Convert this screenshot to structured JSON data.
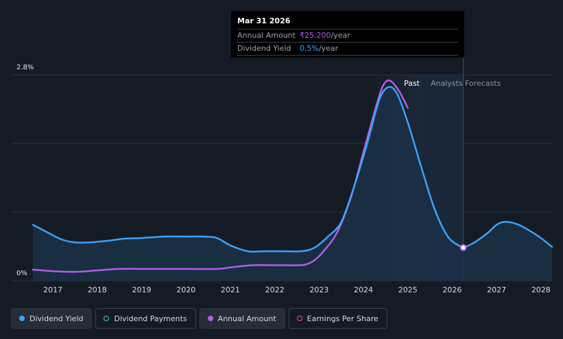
{
  "chart_data": {
    "type": "area",
    "y_axis": {
      "ticks": [
        "2.8%",
        "0%"
      ],
      "max_percent": 2.8,
      "min_percent": 0
    },
    "x_axis": {
      "ticks": [
        "2017",
        "2018",
        "2019",
        "2020",
        "2021",
        "2022",
        "2023",
        "2024",
        "2025",
        "2026",
        "2027",
        "2028"
      ],
      "range": [
        2016.55,
        2028.25
      ]
    },
    "series": [
      {
        "name": "Dividend Yield",
        "color": "#3aa3ff",
        "x": [
          2016.55,
          2016.9,
          2017.2,
          2017.5,
          2017.8,
          2018.2,
          2018.6,
          2019.0,
          2019.5,
          2020.0,
          2020.4,
          2020.7,
          2021.0,
          2021.4,
          2021.8,
          2022.2,
          2022.6,
          2022.9,
          2023.2,
          2023.5,
          2023.8,
          2024.1,
          2024.35,
          2024.55,
          2024.75,
          2025.0,
          2025.3,
          2025.6,
          2025.9,
          2026.2,
          2026.25,
          2026.5,
          2026.8,
          2027.0,
          2027.2,
          2027.5,
          2027.8,
          2028.0,
          2028.25
        ],
        "values": [
          0.76,
          0.65,
          0.56,
          0.52,
          0.52,
          0.54,
          0.57,
          0.58,
          0.6,
          0.6,
          0.6,
          0.58,
          0.48,
          0.4,
          0.4,
          0.4,
          0.4,
          0.45,
          0.6,
          0.8,
          1.3,
          1.9,
          2.45,
          2.63,
          2.55,
          2.15,
          1.55,
          0.98,
          0.6,
          0.46,
          0.45,
          0.52,
          0.65,
          0.76,
          0.8,
          0.76,
          0.66,
          0.58,
          0.46
        ]
      },
      {
        "name": "Annual Amount",
        "color": "#b55de8",
        "x": [
          2016.55,
          2017.0,
          2017.5,
          2018.0,
          2018.5,
          2019.0,
          2019.5,
          2020.0,
          2020.7,
          2021.0,
          2021.5,
          2022.0,
          2022.5,
          2022.7,
          2022.9,
          2023.1,
          2023.4,
          2023.7,
          2024.0,
          2024.3,
          2024.45,
          2024.6,
          2024.8,
          2025.0
        ],
        "values": [
          0.15,
          0.13,
          0.12,
          0.14,
          0.16,
          0.16,
          0.16,
          0.16,
          0.16,
          0.18,
          0.21,
          0.21,
          0.21,
          0.22,
          0.28,
          0.4,
          0.65,
          1.1,
          1.75,
          2.4,
          2.66,
          2.72,
          2.58,
          2.35
        ]
      }
    ],
    "regions": {
      "past_label": "Past",
      "forecast_label": "Analysts Forecasts",
      "past_end": 2025.35,
      "highlight_x": 2026.25
    },
    "tooltip": {
      "date": "Mar 31 2026",
      "rows": [
        {
          "key": "Annual Amount",
          "value": "₹25.200",
          "unit": "/year"
        },
        {
          "key": "Dividend Yield",
          "value": "0.5%",
          "unit": "/year"
        }
      ]
    },
    "legend": [
      {
        "label": "Dividend Yield",
        "color": "#3aa3ff",
        "style": "filled",
        "active": true
      },
      {
        "label": "Dividend Payments",
        "color": "#2fd6b8",
        "style": "hollow",
        "active": false
      },
      {
        "label": "Annual Amount",
        "color": "#b55de8",
        "style": "filled",
        "active": true
      },
      {
        "label": "Earnings Per Share",
        "color": "#e0509b",
        "style": "hollow",
        "active": false
      }
    ]
  }
}
